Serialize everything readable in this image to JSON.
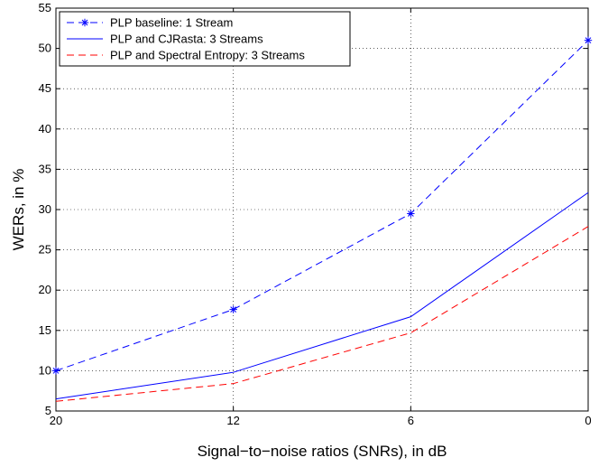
{
  "chart_data": {
    "type": "line",
    "x_categories": [
      "20",
      "12",
      "6",
      "0"
    ],
    "xlabel": "Signal−to−noise ratios (SNRs), in dB",
    "ylabel": "WERs, in %",
    "ylim": [
      5,
      55
    ],
    "yticks": [
      5,
      10,
      15,
      20,
      25,
      30,
      35,
      40,
      45,
      50,
      55
    ],
    "grid": true,
    "legend_position": "top-left",
    "series": [
      {
        "name": "PLP baseline: 1 Stream",
        "values": [
          10.0,
          17.6,
          29.5,
          51.0
        ],
        "color": "#0000ff",
        "line_style": "dashed",
        "marker": "asterisk"
      },
      {
        "name": "PLP and CJRasta: 3 Streams",
        "values": [
          6.5,
          9.8,
          16.7,
          32.1
        ],
        "color": "#0000ff",
        "line_style": "solid",
        "marker": "none"
      },
      {
        "name": "PLP and Spectral Entropy: 3 Streams",
        "values": [
          6.2,
          8.4,
          14.7,
          27.9
        ],
        "color": "#ff0000",
        "line_style": "dashed",
        "marker": "none"
      }
    ]
  }
}
